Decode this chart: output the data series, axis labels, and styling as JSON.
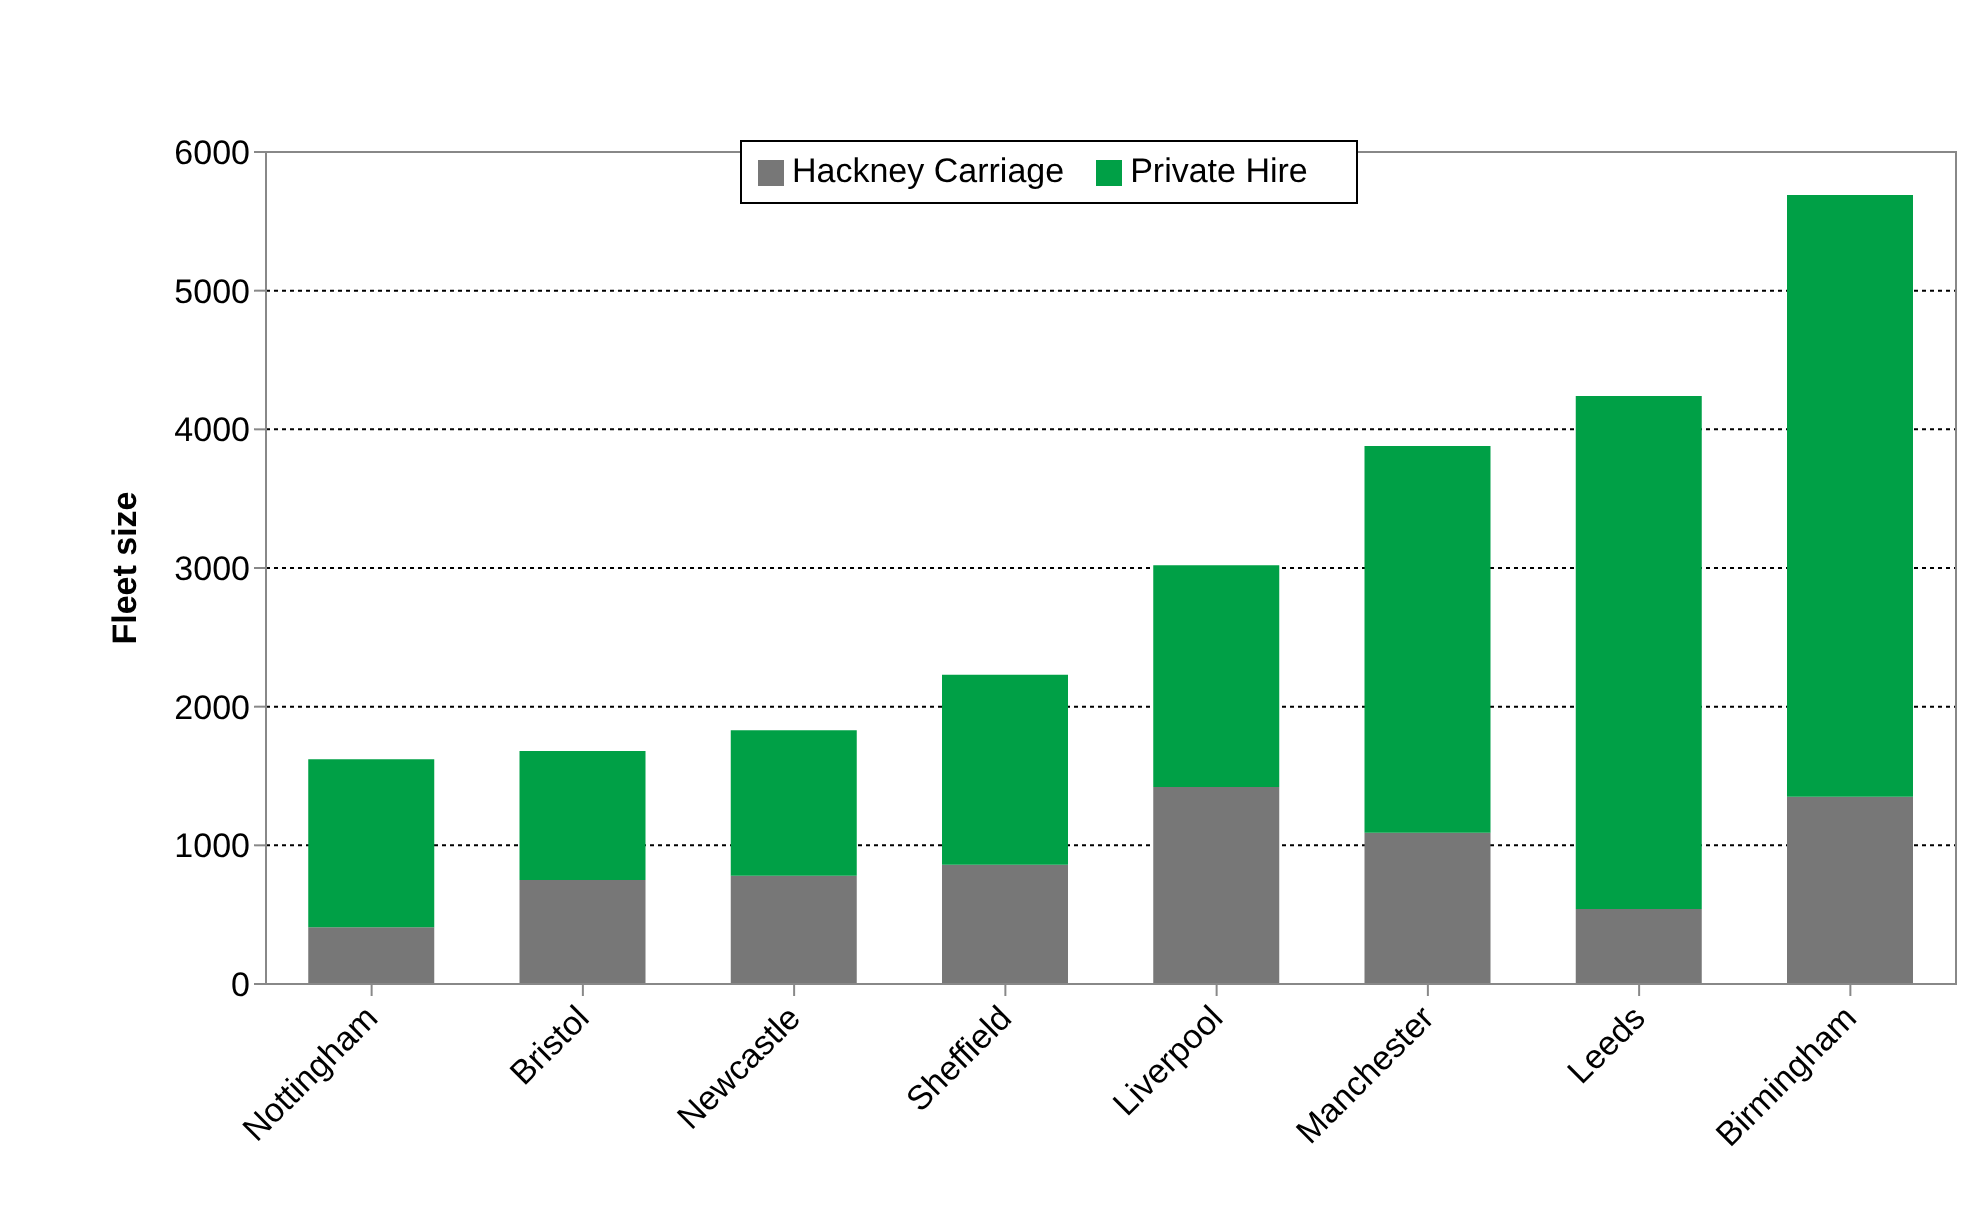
{
  "chart_data": {
    "type": "bar",
    "ylabel": "Fleet size",
    "categories": [
      "Nottingham",
      "Bristol",
      "Newcastle",
      "Sheffield",
      "Liverpool",
      "Manchester",
      "Leeds",
      "Birmingham"
    ],
    "series": [
      {
        "name": "Hackney Carriage",
        "color": "#777777",
        "values": [
          410,
          750,
          780,
          860,
          1420,
          1090,
          540,
          1350
        ]
      },
      {
        "name": "Private Hire",
        "color": "#00a046",
        "values": [
          1210,
          930,
          1050,
          1370,
          1600,
          2790,
          3700,
          4340
        ]
      }
    ],
    "stacked": true,
    "ylim": [
      0,
      6000
    ],
    "yticks": [
      0,
      1000,
      2000,
      3000,
      4000,
      5000,
      6000
    ],
    "grid": "y",
    "legend": "top"
  }
}
